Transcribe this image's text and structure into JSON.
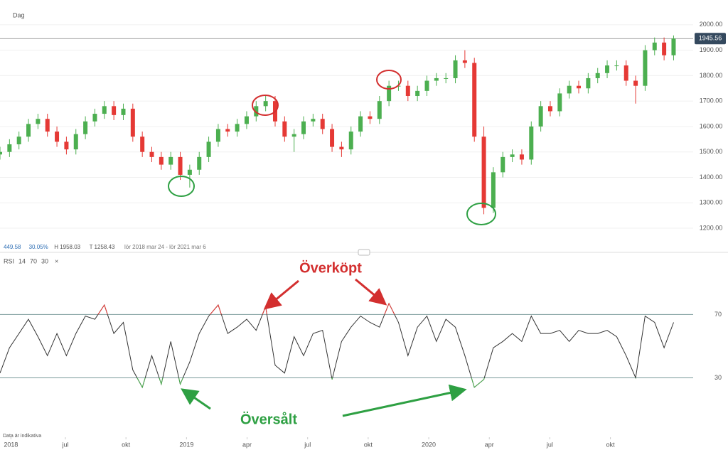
{
  "chart_data": [
    {
      "type": "candlestick",
      "title": "Dag",
      "info": [
        "449.58",
        "30.05%",
        "H 1958.03",
        "T 1258.43",
        "lör 2018 mar 24 - lör 2021 mar 6"
      ],
      "x": [
        2.76,
        3.23,
        3.7,
        4.17,
        4.64,
        5.11,
        5.58,
        6.05,
        6.52,
        6.99,
        7.46,
        7.93,
        8.4,
        8.87,
        9.34,
        9.81,
        10.28,
        10.75,
        11.22,
        11.69,
        12.16,
        12.63,
        13.1,
        13.57,
        14.04,
        14.51,
        14.98,
        15.45,
        15.92,
        16.39,
        16.86,
        17.33,
        17.8,
        18.27,
        18.74,
        19.21,
        19.68,
        20.15,
        20.62,
        21.09,
        21.56,
        22.03,
        22.5,
        22.97,
        23.44,
        23.91,
        24.38,
        24.85,
        25.32,
        25.79,
        26.26,
        26.73,
        27.2,
        27.67,
        28.14,
        28.61,
        29.08,
        29.55,
        30.02,
        30.49,
        30.96,
        31.43,
        31.9,
        32.37,
        32.84,
        33.31,
        33.78,
        34.25,
        34.72,
        35.19,
        35.66,
        36.13
      ],
      "open": [
        1490,
        1500,
        1530,
        1560,
        1610,
        1630,
        1580,
        1540,
        1510,
        1570,
        1620,
        1650,
        1680,
        1645,
        1670,
        1560,
        1500,
        1480,
        1450,
        1480,
        1410,
        1430,
        1480,
        1540,
        1590,
        1580,
        1610,
        1640,
        1680,
        1700,
        1620,
        1560,
        1570,
        1620,
        1630,
        1590,
        1520,
        1510,
        1580,
        1640,
        1630,
        1700,
        1760,
        1760,
        1720,
        1740,
        1780,
        1790,
        1790,
        1860,
        1850,
        1560,
        1280,
        1420,
        1480,
        1490,
        1470,
        1600,
        1680,
        1660,
        1730,
        1760,
        1750,
        1790,
        1810,
        1840,
        1840,
        1780,
        1760,
        1900,
        1930,
        1880
      ],
      "high": [
        1520,
        1550,
        1580,
        1630,
        1650,
        1650,
        1600,
        1560,
        1590,
        1640,
        1670,
        1700,
        1700,
        1690,
        1690,
        1580,
        1520,
        1500,
        1500,
        1500,
        1450,
        1500,
        1560,
        1610,
        1610,
        1630,
        1660,
        1700,
        1720,
        1720,
        1640,
        1590,
        1640,
        1650,
        1650,
        1610,
        1540,
        1600,
        1660,
        1660,
        1720,
        1780,
        1780,
        1780,
        1760,
        1800,
        1810,
        1810,
        1880,
        1900,
        1870,
        1600,
        1440,
        1500,
        1510,
        1510,
        1620,
        1700,
        1700,
        1750,
        1780,
        1780,
        1810,
        1830,
        1860,
        1860,
        1860,
        1800,
        1920,
        1950,
        1950,
        1958
      ],
      "low": [
        1470,
        1480,
        1510,
        1540,
        1590,
        1560,
        1520,
        1490,
        1490,
        1550,
        1600,
        1630,
        1625,
        1625,
        1540,
        1480,
        1460,
        1430,
        1430,
        1390,
        1360,
        1410,
        1460,
        1520,
        1560,
        1560,
        1590,
        1620,
        1660,
        1600,
        1540,
        1500,
        1550,
        1600,
        1570,
        1500,
        1480,
        1490,
        1560,
        1610,
        1610,
        1680,
        1740,
        1700,
        1700,
        1720,
        1760,
        1770,
        1770,
        1830,
        1540,
        1255,
        1260,
        1400,
        1460,
        1450,
        1450,
        1580,
        1640,
        1640,
        1710,
        1730,
        1730,
        1770,
        1790,
        1820,
        1760,
        1690,
        1740,
        1880,
        1860,
        1860
      ],
      "close": [
        1500,
        1530,
        1560,
        1610,
        1630,
        1580,
        1540,
        1510,
        1570,
        1620,
        1650,
        1680,
        1645,
        1670,
        1560,
        1500,
        1480,
        1450,
        1480,
        1410,
        1430,
        1480,
        1540,
        1590,
        1580,
        1610,
        1640,
        1680,
        1700,
        1620,
        1560,
        1570,
        1620,
        1630,
        1590,
        1520,
        1510,
        1580,
        1640,
        1630,
        1700,
        1760,
        1760,
        1720,
        1740,
        1780,
        1790,
        1790,
        1860,
        1850,
        1560,
        1280,
        1420,
        1480,
        1490,
        1470,
        1600,
        1680,
        1660,
        1730,
        1760,
        1750,
        1790,
        1810,
        1840,
        1840,
        1780,
        1760,
        1900,
        1930,
        1880,
        1945.56
      ],
      "up_color": "#4caf50",
      "down_color": "#e53935",
      "xlim": [
        2.76,
        37.1
      ],
      "ylim": [
        1147,
        2075
      ],
      "yticks": [
        {
          "value": 1200,
          "label": "1200.00"
        },
        {
          "value": 1300,
          "label": "1300.00"
        },
        {
          "value": 1400,
          "label": "1400.00"
        },
        {
          "value": 1500,
          "label": "1500.00"
        },
        {
          "value": 1600,
          "label": "1600.00"
        },
        {
          "value": 1700,
          "label": "1700.00"
        },
        {
          "value": 1800,
          "label": "1800.00"
        },
        {
          "value": 1900,
          "label": "1900.00"
        },
        {
          "value": 2000,
          "label": "2000.00"
        }
      ],
      "grid": true
    },
    {
      "type": "line",
      "title": [
        "RSI",
        "14",
        "70",
        "30"
      ],
      "x": [
        2.76,
        3.23,
        3.7,
        4.17,
        4.64,
        5.11,
        5.58,
        6.05,
        6.52,
        6.99,
        7.46,
        7.93,
        8.4,
        8.87,
        9.34,
        9.81,
        10.28,
        10.75,
        11.22,
        11.69,
        12.16,
        12.63,
        13.1,
        13.57,
        14.04,
        14.51,
        14.98,
        15.45,
        15.92,
        16.39,
        16.86,
        17.33,
        17.8,
        18.27,
        18.74,
        19.21,
        19.68,
        20.15,
        20.62,
        21.09,
        21.56,
        22.03,
        22.5,
        22.97,
        23.44,
        23.91,
        24.38,
        24.85,
        25.32,
        25.79,
        26.26,
        26.73,
        27.2,
        27.67,
        28.14,
        28.61,
        29.08,
        29.55,
        30.02,
        30.49,
        30.96,
        31.43,
        31.9,
        32.37,
        32.84,
        33.31,
        33.78,
        34.25,
        34.72,
        35.19,
        35.66,
        36.13
      ],
      "values": [
        33,
        49,
        58,
        67,
        56,
        44,
        58,
        44,
        58,
        69,
        67,
        76,
        58,
        65,
        35,
        24,
        44,
        26,
        53,
        26,
        40,
        58,
        69,
        76,
        58,
        62,
        67,
        60,
        75,
        38,
        33,
        56,
        44,
        58,
        60,
        29,
        53,
        62,
        69,
        65,
        62,
        77,
        65,
        44,
        62,
        69,
        53,
        67,
        62,
        44,
        24,
        29,
        49,
        53,
        58,
        53,
        69,
        58,
        58,
        60,
        53,
        60,
        58,
        58,
        60,
        56,
        44,
        30,
        69,
        65,
        49,
        65
      ],
      "color": "#333333",
      "over_color": "#e53935",
      "under_color": "#4caf50",
      "xlim": [
        2.76,
        37.1
      ],
      "ylim": [
        -3,
        107
      ],
      "yticks": [
        30,
        70
      ],
      "xticks": [
        {
          "value": 3.3,
          "label": "2018"
        },
        {
          "value": 6,
          "label": "jul"
        },
        {
          "value": 9,
          "label": "okt"
        },
        {
          "value": 12,
          "label": "2019"
        },
        {
          "value": 15,
          "label": "apr"
        },
        {
          "value": 18,
          "label": "jul"
        },
        {
          "value": 21,
          "label": "okt"
        },
        {
          "value": 24,
          "label": "2020"
        },
        {
          "value": 27,
          "label": "apr"
        },
        {
          "value": 30,
          "label": "jul"
        },
        {
          "value": 33,
          "label": "okt"
        }
      ]
    }
  ],
  "annotations": {
    "overbought": "Överköpt",
    "oversold": "Översålt"
  },
  "footnote": "Data är indikativa"
}
